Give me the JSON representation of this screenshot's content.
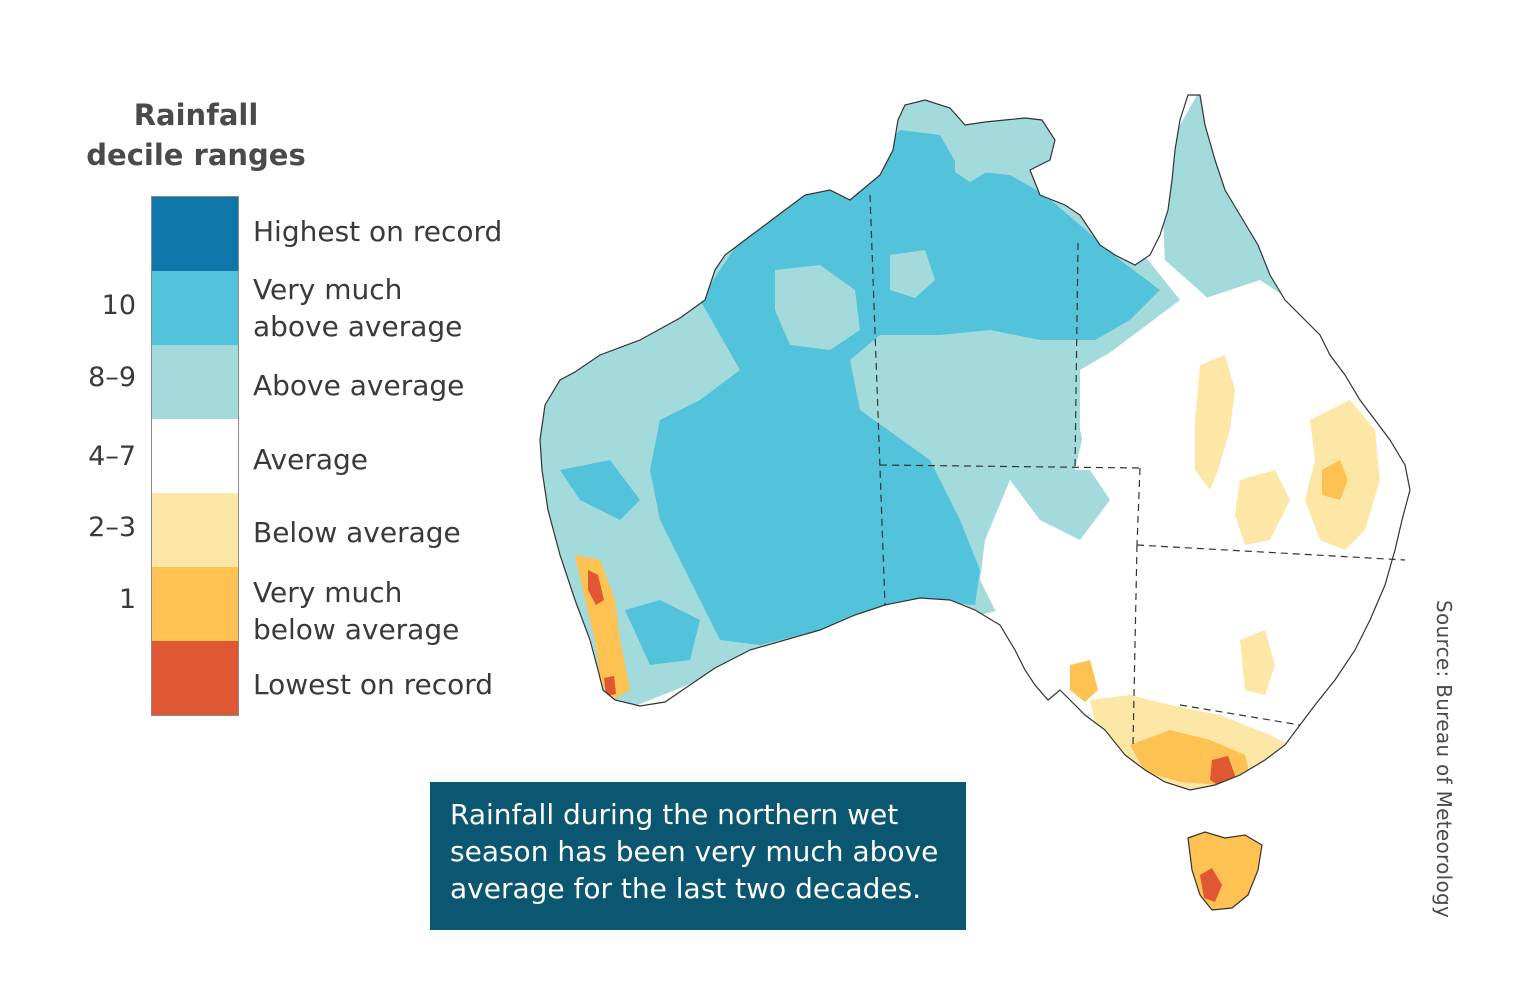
{
  "legend": {
    "title_line1": "Rainfall",
    "title_line2": "decile ranges",
    "categories": [
      {
        "label_line1": "Highest on record",
        "label_line2": "",
        "decile": "",
        "color": "#0e76a8"
      },
      {
        "label_line1": "Very much",
        "label_line2": "above average",
        "decile": "10",
        "color": "#52c3da"
      },
      {
        "label_line1": "Above average",
        "label_line2": "",
        "decile": "8–9",
        "color": "#a3dbdd"
      },
      {
        "label_line1": "Average",
        "label_line2": "",
        "decile": "4–7",
        "color": "#ffffff"
      },
      {
        "label_line1": "Below average",
        "label_line2": "",
        "decile": "2–3",
        "color": "#fde7a6"
      },
      {
        "label_line1": "Very much",
        "label_line2": "below average",
        "decile": "1",
        "color": "#fdc251"
      },
      {
        "label_line1": "Lowest on record",
        "label_line2": "",
        "decile": "",
        "color": "#df5733"
      }
    ]
  },
  "callout": {
    "line1": "Rainfall during the northern wet",
    "line2": "season has been very much above",
    "line3": "average for the last two decades."
  },
  "source": "Source: Bureau of Meteorology",
  "map": {
    "region": "Australia",
    "boundary_color": "#333333"
  }
}
